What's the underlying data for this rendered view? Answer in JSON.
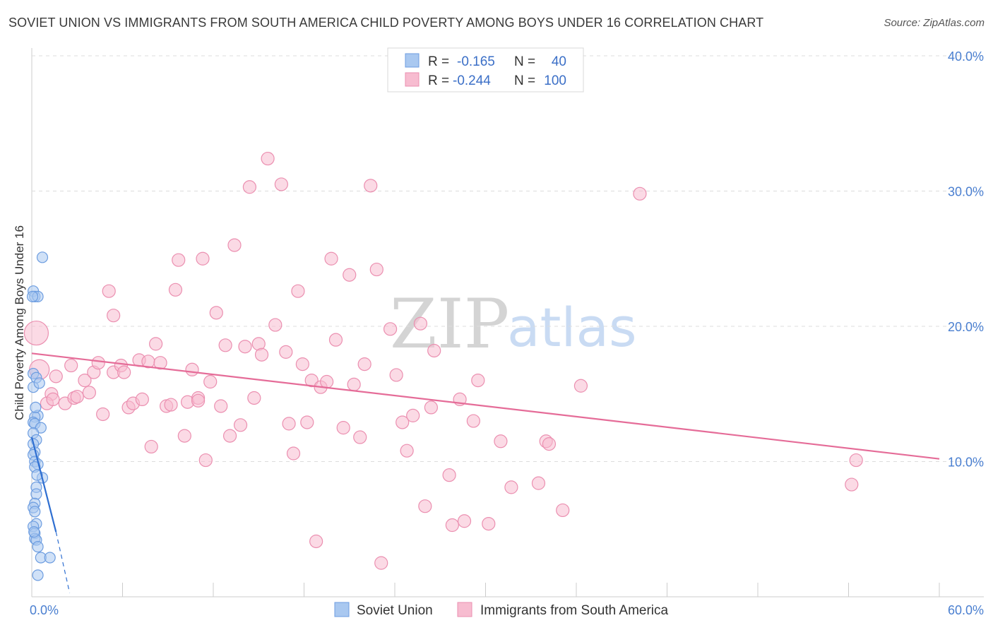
{
  "title": "SOVIET UNION VS IMMIGRANTS FROM SOUTH AMERICA CHILD POVERTY AMONG BOYS UNDER 16 CORRELATION CHART",
  "source": "Source: ZipAtlas.com",
  "watermark": {
    "zip": "ZIP",
    "atlas": "atlas"
  },
  "colors": {
    "blue_fill": "#a9c8f0",
    "blue_stroke": "#6d9de0",
    "blue_line": "#2f6fd1",
    "pink_fill": "#f7bcd0",
    "pink_stroke": "#eb8fb0",
    "pink_line": "#e56c98",
    "grid": "#dcdcdc",
    "tick_text": "#4a7fd0"
  },
  "stats": [
    {
      "r_label": "R =",
      "r_value": "-0.165",
      "n_label": "N =",
      "n_value": "40"
    },
    {
      "r_label": "R =",
      "r_value": "-0.244",
      "n_label": "N =",
      "n_value": "100"
    }
  ],
  "chart_data": {
    "type": "scatter",
    "title": "SOVIET UNION VS IMMIGRANTS FROM SOUTH AMERICA CHILD POVERTY AMONG BOYS UNDER 16 CORRELATION CHART",
    "xlabel": "",
    "ylabel": "Child Poverty Among Boys Under 16",
    "xlim": [
      0,
      60
    ],
    "ylim": [
      0,
      40
    ],
    "x_ticks": [
      "0.0%",
      "60.0%"
    ],
    "y_ticks": [
      {
        "value": 10,
        "label": "10.0%"
      },
      {
        "value": 20,
        "label": "20.0%"
      },
      {
        "value": 30,
        "label": "30.0%"
      },
      {
        "value": 40,
        "label": "40.0%"
      }
    ],
    "legend": [
      "Soviet Union",
      "Immigrants from South America"
    ],
    "series": [
      {
        "name": "Soviet Union",
        "color": "#a9c8f0",
        "points": [
          [
            0.7,
            25.1
          ],
          [
            0.1,
            22.6
          ],
          [
            0.2,
            22.2
          ],
          [
            0.4,
            22.2
          ],
          [
            0.05,
            22.2
          ],
          [
            0.1,
            16.5
          ],
          [
            0.3,
            16.2
          ],
          [
            0.1,
            15.5
          ],
          [
            0.4,
            13.4
          ],
          [
            0.2,
            13.3
          ],
          [
            0.1,
            12.9
          ],
          [
            0.2,
            12.8
          ],
          [
            0.6,
            12.5
          ],
          [
            0.1,
            12.1
          ],
          [
            0.3,
            11.6
          ],
          [
            0.1,
            11.3
          ],
          [
            0.2,
            10.7
          ],
          [
            0.1,
            10.5
          ],
          [
            0.2,
            10.0
          ],
          [
            0.4,
            9.8
          ],
          [
            0.2,
            9.6
          ],
          [
            0.7,
            8.8
          ],
          [
            0.3,
            8.1
          ],
          [
            0.3,
            7.6
          ],
          [
            0.2,
            6.9
          ],
          [
            0.1,
            6.6
          ],
          [
            0.2,
            6.3
          ],
          [
            0.3,
            5.4
          ],
          [
            0.1,
            5.2
          ],
          [
            0.2,
            4.7
          ],
          [
            0.2,
            4.3
          ],
          [
            0.3,
            4.2
          ],
          [
            0.4,
            3.7
          ],
          [
            0.6,
            2.9
          ],
          [
            1.2,
            2.9
          ],
          [
            0.4,
            1.6
          ],
          [
            0.15,
            4.8
          ],
          [
            0.25,
            14.0
          ],
          [
            0.5,
            15.8
          ],
          [
            0.35,
            9.0
          ]
        ]
      },
      {
        "name": "Immigrants from South America",
        "color": "#f7bcd0",
        "points": [
          [
            0.3,
            19.5
          ],
          [
            0.5,
            16.8
          ],
          [
            1.3,
            15.0
          ],
          [
            1.6,
            16.3
          ],
          [
            1.0,
            14.3
          ],
          [
            1.4,
            14.6
          ],
          [
            2.2,
            14.3
          ],
          [
            2.6,
            17.1
          ],
          [
            2.8,
            14.7
          ],
          [
            3.0,
            14.8
          ],
          [
            3.5,
            16.0
          ],
          [
            3.8,
            15.1
          ],
          [
            4.1,
            16.6
          ],
          [
            4.4,
            17.3
          ],
          [
            4.7,
            13.5
          ],
          [
            5.1,
            22.6
          ],
          [
            5.4,
            20.8
          ],
          [
            5.4,
            16.6
          ],
          [
            5.9,
            17.1
          ],
          [
            6.1,
            16.6
          ],
          [
            6.4,
            14.0
          ],
          [
            6.7,
            14.3
          ],
          [
            7.1,
            17.5
          ],
          [
            7.3,
            14.6
          ],
          [
            7.7,
            17.4
          ],
          [
            7.9,
            11.1
          ],
          [
            8.2,
            18.7
          ],
          [
            8.5,
            17.3
          ],
          [
            8.9,
            14.1
          ],
          [
            9.2,
            14.2
          ],
          [
            9.5,
            22.7
          ],
          [
            9.7,
            24.9
          ],
          [
            10.1,
            11.9
          ],
          [
            10.3,
            14.4
          ],
          [
            10.6,
            16.8
          ],
          [
            11.0,
            14.7
          ],
          [
            11.3,
            25.0
          ],
          [
            11.5,
            10.1
          ],
          [
            11.8,
            15.9
          ],
          [
            12.2,
            21.0
          ],
          [
            12.5,
            14.1
          ],
          [
            12.8,
            18.6
          ],
          [
            13.1,
            11.9
          ],
          [
            13.4,
            26.0
          ],
          [
            13.8,
            12.7
          ],
          [
            14.1,
            18.5
          ],
          [
            14.4,
            30.3
          ],
          [
            14.7,
            14.7
          ],
          [
            15.0,
            18.7
          ],
          [
            15.2,
            17.9
          ],
          [
            15.6,
            32.4
          ],
          [
            16.1,
            20.1
          ],
          [
            16.5,
            30.5
          ],
          [
            16.8,
            18.1
          ],
          [
            17.0,
            12.8
          ],
          [
            17.3,
            10.6
          ],
          [
            17.6,
            22.6
          ],
          [
            17.9,
            17.2
          ],
          [
            18.2,
            12.9
          ],
          [
            18.5,
            16.0
          ],
          [
            18.8,
            4.1
          ],
          [
            19.1,
            15.5
          ],
          [
            19.5,
            15.9
          ],
          [
            19.8,
            25.0
          ],
          [
            20.1,
            19.0
          ],
          [
            20.6,
            12.5
          ],
          [
            21.0,
            23.8
          ],
          [
            21.3,
            15.7
          ],
          [
            21.7,
            11.8
          ],
          [
            22.0,
            17.2
          ],
          [
            22.4,
            30.4
          ],
          [
            22.8,
            24.2
          ],
          [
            23.1,
            2.5
          ],
          [
            23.7,
            19.8
          ],
          [
            24.1,
            16.4
          ],
          [
            24.5,
            12.9
          ],
          [
            24.8,
            10.8
          ],
          [
            25.2,
            13.4
          ],
          [
            25.7,
            20.2
          ],
          [
            26.0,
            6.7
          ],
          [
            26.4,
            14.0
          ],
          [
            26.6,
            18.2
          ],
          [
            27.6,
            9.0
          ],
          [
            27.8,
            5.3
          ],
          [
            28.3,
            14.6
          ],
          [
            28.6,
            5.6
          ],
          [
            29.2,
            13.0
          ],
          [
            29.5,
            16.0
          ],
          [
            30.2,
            5.4
          ],
          [
            31.0,
            11.5
          ],
          [
            31.7,
            8.1
          ],
          [
            33.5,
            8.4
          ],
          [
            34.0,
            11.5
          ],
          [
            34.2,
            11.3
          ],
          [
            35.1,
            6.4
          ],
          [
            36.3,
            15.6
          ],
          [
            40.2,
            29.8
          ],
          [
            54.2,
            8.3
          ],
          [
            54.5,
            10.1
          ],
          [
            11.0,
            14.5
          ]
        ]
      }
    ],
    "trend_lines": [
      {
        "series": "Soviet Union",
        "x": [
          0,
          1.6
        ],
        "y": [
          11.8,
          4.8
        ],
        "dashed_extension": {
          "x": [
            1.6,
            2.5
          ],
          "y": [
            4.8,
            0.3
          ]
        }
      },
      {
        "series": "Immigrants from South America",
        "x": [
          0,
          60
        ],
        "y": [
          18.0,
          10.2
        ]
      }
    ]
  }
}
